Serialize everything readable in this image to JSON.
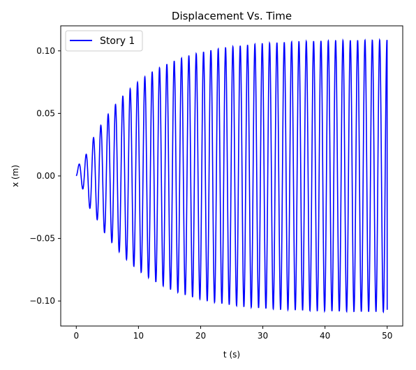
{
  "chart_data": {
    "type": "line",
    "title": "Displacement Vs. Time",
    "xlabel": "t (s)",
    "ylabel": "x (m)",
    "xlim": [
      -2.5,
      52.5
    ],
    "ylim": [
      -0.12,
      0.12
    ],
    "x_ticks": [
      0,
      10,
      20,
      30,
      40,
      50
    ],
    "x_tick_labels": [
      "0",
      "10",
      "20",
      "30",
      "40",
      "50"
    ],
    "y_ticks": [
      -0.1,
      -0.05,
      0.0,
      0.05,
      0.1
    ],
    "y_tick_labels": [
      "−0.10",
      "−0.05",
      "0.00",
      "0.05",
      "0.10"
    ],
    "grid": false,
    "legend_position": "top-left",
    "series": [
      {
        "name": "Story 1",
        "color": "#0000ff",
        "x_range": [
          0,
          50
        ],
        "amplitude_max": 0.109,
        "envelope_time_constant_s": 8.5,
        "period_s": 1.18,
        "end_value": -0.107
      }
    ]
  }
}
